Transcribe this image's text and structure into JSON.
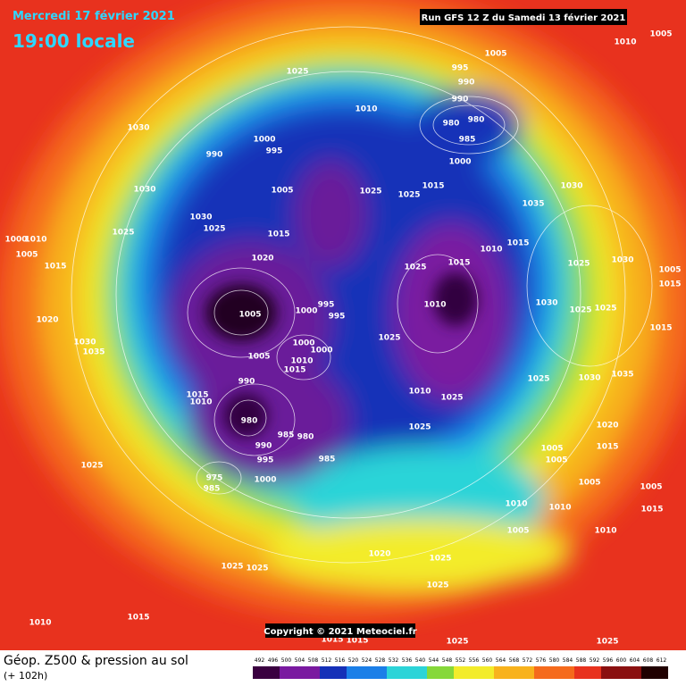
{
  "header": {
    "date": "Mercredi 17 février 2021",
    "time": "19:00 locale",
    "run": "Run GFS 12 Z du Samedi 13 février 2021",
    "copyright": "Copyright © 2021 Meteociel.fr"
  },
  "footer": {
    "title": "Géop. Z500 & pression au sol",
    "lead": "(+ 102h)"
  },
  "pressure_labels": [
    1030,
    1025,
    1010,
    995,
    990,
    990,
    980,
    980,
    985,
    1000,
    1015,
    1005,
    1010,
    1005,
    1000,
    995,
    990,
    1005,
    1025,
    1025,
    1030,
    1030,
    1025,
    1025,
    1015,
    1000,
    1010,
    1005,
    1015,
    1020,
    1025,
    1015,
    1010,
    1015,
    1030,
    1035,
    1025,
    1030,
    1015,
    1005,
    1000,
    995,
    995,
    1010,
    1020,
    1030,
    1035,
    1025,
    1000,
    1000,
    1010,
    1015,
    1005,
    1015,
    1010,
    990,
    980,
    985,
    980,
    985,
    990,
    995,
    1000,
    975,
    985,
    1025,
    1010,
    1025,
    1025,
    1025,
    1030,
    1035,
    1020,
    1015,
    1005,
    1005,
    1005,
    1010,
    1010,
    1010,
    1005,
    1005,
    1015,
    1020,
    1025,
    1025,
    1025,
    1025,
    1015,
    1010,
    1015,
    1015,
    1025,
    1025,
    1005,
    1015,
    1025,
    1025,
    1030
  ],
  "scale": [
    492,
    496,
    500,
    504,
    508,
    512,
    516,
    520,
    524,
    528,
    532,
    536,
    540,
    544,
    548,
    552,
    556,
    560,
    564,
    568,
    572,
    576,
    580,
    584,
    588,
    592,
    596,
    600,
    604,
    608,
    612
  ]
}
